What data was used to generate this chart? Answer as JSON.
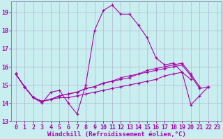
{
  "background_color": "#c8eef0",
  "grid_color": "#b0b8d0",
  "line_color": "#aa00aa",
  "spine_color": "#8888aa",
  "xlim": [
    -0.5,
    23.5
  ],
  "ylim": [
    13,
    19.6
  ],
  "yticks": [
    13,
    14,
    15,
    16,
    17,
    18,
    19
  ],
  "xticks": [
    0,
    1,
    2,
    3,
    4,
    5,
    6,
    7,
    8,
    9,
    10,
    11,
    12,
    13,
    14,
    15,
    16,
    17,
    18,
    19,
    20,
    21,
    22,
    23
  ],
  "xlabel": "Windchill (Refroidissement éolien,°C)",
  "xlabel_fontsize": 6.5,
  "tick_fontsize": 6.0,
  "series": [
    {
      "x": [
        0,
        1,
        2,
        3,
        4,
        5,
        6,
        7,
        8,
        9,
        10,
        11,
        12,
        13,
        14,
        15,
        16,
        17,
        18,
        19,
        20,
        21,
        22
      ],
      "y": [
        15.6,
        14.9,
        14.3,
        14.0,
        14.6,
        14.7,
        14.0,
        13.4,
        15.0,
        18.0,
        19.1,
        19.4,
        18.9,
        18.9,
        18.3,
        17.6,
        16.5,
        16.1,
        16.2,
        15.7,
        13.9,
        14.4,
        14.9
      ]
    },
    {
      "x": [
        0,
        1,
        2,
        3,
        4,
        5,
        6,
        7,
        8,
        9,
        10,
        11,
        12,
        13,
        14,
        15,
        16,
        17,
        18,
        19,
        20
      ],
      "y": [
        15.6,
        14.9,
        14.3,
        14.1,
        14.2,
        14.3,
        14.3,
        14.4,
        14.5,
        14.6,
        14.7,
        14.8,
        14.9,
        15.0,
        15.1,
        15.2,
        15.3,
        15.5,
        15.6,
        15.7,
        15.3
      ]
    },
    {
      "x": [
        0,
        1,
        2,
        3,
        4,
        5,
        6,
        7,
        8,
        9,
        10,
        11,
        12,
        13,
        14,
        15,
        16,
        17,
        18,
        19,
        20,
        21
      ],
      "y": [
        15.6,
        14.9,
        14.3,
        14.1,
        14.2,
        14.4,
        14.5,
        14.6,
        14.8,
        14.9,
        15.1,
        15.2,
        15.4,
        15.5,
        15.6,
        15.8,
        15.9,
        16.0,
        16.1,
        16.2,
        15.6,
        14.9
      ]
    },
    {
      "x": [
        0,
        1,
        2,
        3,
        4,
        5,
        6,
        7,
        8,
        9,
        10,
        11,
        12,
        13,
        14,
        15,
        16,
        17,
        18,
        19,
        20,
        21,
        22
      ],
      "y": [
        15.6,
        14.9,
        14.3,
        14.1,
        14.2,
        14.4,
        14.5,
        14.6,
        14.8,
        14.9,
        15.1,
        15.2,
        15.3,
        15.4,
        15.6,
        15.7,
        15.8,
        15.9,
        16.0,
        16.1,
        15.5,
        14.8,
        14.9
      ]
    }
  ]
}
